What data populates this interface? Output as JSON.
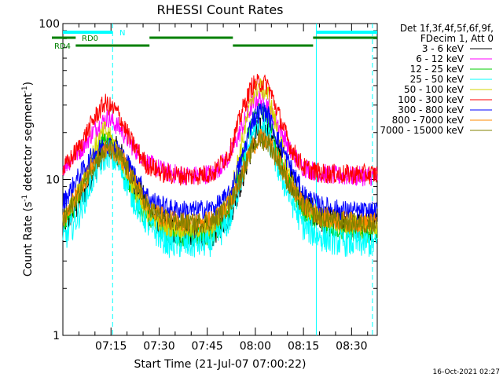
{
  "chart_data": {
    "type": "line",
    "title": "RHESSI Count Rates",
    "xlabel": "Start Time (21-Jul-07 07:00:22)",
    "ylabel_main": "Count Rate (s",
    "ylabel_exp": "-1",
    "ylabel_mid": " detector segment",
    "ylabel_end": ")",
    "yscale": "log",
    "ylim": [
      1,
      100
    ],
    "xlim_minutes": [
      0,
      98
    ],
    "x_ticks": [
      {
        "label": "07:15",
        "minutes": 15
      },
      {
        "label": "07:30",
        "minutes": 30
      },
      {
        "label": "07:45",
        "minutes": 45
      },
      {
        "label": "08:00",
        "minutes": 60
      },
      {
        "label": "08:15",
        "minutes": 75
      },
      {
        "label": "08:30",
        "minutes": 90
      }
    ],
    "y_ticks": [
      {
        "label": "1",
        "value": 1
      },
      {
        "label": "10",
        "value": 10
      },
      {
        "label": "100",
        "value": 100
      }
    ],
    "legend_header": [
      "Det 1f,3f,4f,5f,6f,9f,",
      "FDecim 1, Att 0"
    ],
    "series": [
      {
        "name": "3 - 6 keV",
        "color": "#000000",
        "points": [
          [
            0,
            5.0
          ],
          [
            5,
            7.0
          ],
          [
            10,
            12.0
          ],
          [
            14,
            17.0
          ],
          [
            18,
            14.5
          ],
          [
            22,
            10.0
          ],
          [
            27,
            6.2
          ],
          [
            33,
            4.7
          ],
          [
            40,
            4.5
          ],
          [
            47,
            4.6
          ],
          [
            52,
            6.0
          ],
          [
            56,
            10.5
          ],
          [
            59,
            17.0
          ],
          [
            61,
            20.5
          ],
          [
            64,
            19.0
          ],
          [
            67,
            15.0
          ],
          [
            71,
            10.0
          ],
          [
            75,
            7.0
          ],
          [
            80,
            5.5
          ],
          [
            86,
            5.2
          ],
          [
            92,
            5.0
          ],
          [
            98,
            5.0
          ]
        ]
      },
      {
        "name": "6 - 12 keV",
        "color": "#ff00ff",
        "points": [
          [
            0,
            12.0
          ],
          [
            5,
            15.0
          ],
          [
            10,
            21.0
          ],
          [
            14,
            25.0
          ],
          [
            18,
            21.0
          ],
          [
            22,
            16.0
          ],
          [
            27,
            12.5
          ],
          [
            33,
            11.0
          ],
          [
            40,
            10.5
          ],
          [
            47,
            11.0
          ],
          [
            52,
            14.0
          ],
          [
            56,
            22.0
          ],
          [
            59,
            30.0
          ],
          [
            61,
            33.0
          ],
          [
            64,
            30.0
          ],
          [
            67,
            23.0
          ],
          [
            71,
            15.0
          ],
          [
            75,
            12.0
          ],
          [
            80,
            11.0
          ],
          [
            86,
            10.5
          ],
          [
            92,
            10.5
          ],
          [
            98,
            10.5
          ]
        ]
      },
      {
        "name": "12 - 25 keV",
        "color": "#00cc00",
        "points": [
          [
            0,
            5.0
          ],
          [
            5,
            7.5
          ],
          [
            10,
            14.0
          ],
          [
            13,
            19.0
          ],
          [
            16,
            16.0
          ],
          [
            20,
            10.0
          ],
          [
            25,
            6.0
          ],
          [
            32,
            4.5
          ],
          [
            40,
            4.2
          ],
          [
            47,
            4.4
          ],
          [
            52,
            6.5
          ],
          [
            56,
            14.0
          ],
          [
            59,
            24.0
          ],
          [
            61,
            28.0
          ],
          [
            64,
            24.0
          ],
          [
            67,
            15.0
          ],
          [
            71,
            9.0
          ],
          [
            75,
            6.2
          ],
          [
            80,
            5.2
          ],
          [
            86,
            4.8
          ],
          [
            92,
            4.6
          ],
          [
            98,
            4.6
          ]
        ]
      },
      {
        "name": "25 - 50 keV",
        "color": "#00ffff",
        "points": [
          [
            0,
            4.0
          ],
          [
            5,
            6.0
          ],
          [
            10,
            11.0
          ],
          [
            14,
            15.0
          ],
          [
            18,
            12.0
          ],
          [
            22,
            7.5
          ],
          [
            27,
            5.0
          ],
          [
            33,
            3.9
          ],
          [
            40,
            3.8
          ],
          [
            47,
            4.0
          ],
          [
            52,
            5.5
          ],
          [
            56,
            11.0
          ],
          [
            59,
            20.0
          ],
          [
            61,
            22.0
          ],
          [
            64,
            19.0
          ],
          [
            67,
            12.0
          ],
          [
            71,
            7.5
          ],
          [
            75,
            5.0
          ],
          [
            80,
            4.3
          ],
          [
            86,
            4.0
          ],
          [
            92,
            3.9
          ],
          [
            98,
            3.9
          ]
        ]
      },
      {
        "name": "50 - 100 keV",
        "color": "#d4d400",
        "points": [
          [
            0,
            5.5
          ],
          [
            5,
            8.5
          ],
          [
            10,
            16.0
          ],
          [
            13,
            21.0
          ],
          [
            16,
            17.0
          ],
          [
            20,
            11.0
          ],
          [
            25,
            6.5
          ],
          [
            32,
            5.0
          ],
          [
            40,
            4.8
          ],
          [
            47,
            5.0
          ],
          [
            52,
            7.5
          ],
          [
            56,
            18.0
          ],
          [
            59,
            34.0
          ],
          [
            61,
            40.0
          ],
          [
            64,
            35.0
          ],
          [
            67,
            20.0
          ],
          [
            71,
            10.0
          ],
          [
            75,
            6.8
          ],
          [
            80,
            5.7
          ],
          [
            86,
            5.2
          ],
          [
            92,
            5.1
          ],
          [
            98,
            5.1
          ]
        ]
      },
      {
        "name": "100 - 300 keV",
        "color": "#ff0000",
        "points": [
          [
            0,
            11.5
          ],
          [
            5,
            16.0
          ],
          [
            10,
            25.0
          ],
          [
            13,
            31.0
          ],
          [
            17,
            27.0
          ],
          [
            21,
            18.0
          ],
          [
            26,
            12.5
          ],
          [
            32,
            10.8
          ],
          [
            40,
            10.5
          ],
          [
            47,
            11.0
          ],
          [
            52,
            15.0
          ],
          [
            56,
            28.0
          ],
          [
            59,
            40.0
          ],
          [
            62,
            42.0
          ],
          [
            64,
            40.0
          ],
          [
            67,
            27.0
          ],
          [
            71,
            16.0
          ],
          [
            75,
            12.0
          ],
          [
            80,
            11.0
          ],
          [
            86,
            10.8
          ],
          [
            92,
            10.8
          ],
          [
            98,
            10.8
          ]
        ]
      },
      {
        "name": "300 - 800 keV",
        "color": "#0000ff",
        "points": [
          [
            0,
            7.0
          ],
          [
            5,
            10.5
          ],
          [
            10,
            15.0
          ],
          [
            14,
            17.0
          ],
          [
            18,
            15.0
          ],
          [
            22,
            11.0
          ],
          [
            27,
            7.5
          ],
          [
            33,
            6.5
          ],
          [
            40,
            6.3
          ],
          [
            47,
            6.5
          ],
          [
            52,
            8.0
          ],
          [
            56,
            14.0
          ],
          [
            59,
            24.0
          ],
          [
            62,
            28.0
          ],
          [
            64,
            26.0
          ],
          [
            67,
            18.0
          ],
          [
            71,
            12.0
          ],
          [
            75,
            8.0
          ],
          [
            80,
            6.8
          ],
          [
            86,
            6.4
          ],
          [
            92,
            6.2
          ],
          [
            98,
            6.2
          ]
        ]
      },
      {
        "name": "800 - 7000 keV",
        "color": "#ff8800",
        "points": [
          [
            0,
            5.5
          ],
          [
            5,
            8.5
          ],
          [
            10,
            13.0
          ],
          [
            14,
            16.0
          ],
          [
            18,
            14.0
          ],
          [
            22,
            10.0
          ],
          [
            27,
            6.5
          ],
          [
            33,
            5.5
          ],
          [
            40,
            5.3
          ],
          [
            47,
            5.5
          ],
          [
            52,
            7.0
          ],
          [
            56,
            11.0
          ],
          [
            59,
            16.0
          ],
          [
            61,
            18.5
          ],
          [
            64,
            17.5
          ],
          [
            67,
            13.5
          ],
          [
            71,
            9.0
          ],
          [
            75,
            6.8
          ],
          [
            80,
            5.8
          ],
          [
            86,
            5.5
          ],
          [
            92,
            5.3
          ],
          [
            98,
            5.3
          ]
        ]
      },
      {
        "name": "7000 - 15000 keV",
        "color": "#808000",
        "points": [
          [
            0,
            5.4
          ],
          [
            5,
            8.2
          ],
          [
            10,
            12.8
          ],
          [
            14,
            15.8
          ],
          [
            18,
            13.8
          ],
          [
            22,
            9.8
          ],
          [
            27,
            6.4
          ],
          [
            33,
            5.4
          ],
          [
            40,
            5.2
          ],
          [
            47,
            5.4
          ],
          [
            52,
            6.9
          ],
          [
            56,
            10.8
          ],
          [
            59,
            15.8
          ],
          [
            61,
            18.2
          ],
          [
            64,
            17.2
          ],
          [
            67,
            13.2
          ],
          [
            71,
            8.8
          ],
          [
            75,
            6.7
          ],
          [
            80,
            5.7
          ],
          [
            86,
            5.4
          ],
          [
            92,
            5.2
          ],
          [
            98,
            5.2
          ]
        ]
      }
    ],
    "event_bars": {
      "N": {
        "label": "N",
        "color": "#00ffff",
        "spans": [
          [
            0,
            15.5
          ],
          [
            79,
            98
          ]
        ]
      },
      "RD0": {
        "label": "RD0",
        "color": "#008000",
        "spans": [
          [
            0,
            4
          ],
          [
            27,
            53
          ],
          [
            78,
            98
          ]
        ]
      },
      "RD4": {
        "label": "RD4",
        "color": "#008000",
        "spans": [
          [
            4,
            27
          ],
          [
            53,
            78
          ]
        ]
      }
    },
    "vertical_lines": [
      {
        "minutes": 15.5,
        "style": "dashed",
        "color": "#00ffff"
      },
      {
        "minutes": 79,
        "style": "solid",
        "color": "#00ffff"
      },
      {
        "minutes": 96.5,
        "style": "dashed",
        "color": "#00ffff"
      }
    ],
    "timestamp": "16-Oct-2021 02:27"
  }
}
